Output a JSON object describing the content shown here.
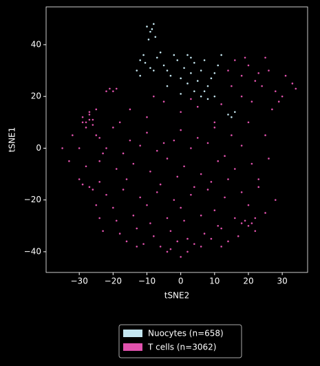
{
  "chart_data": {
    "type": "scatter",
    "x_label": "tSNE2",
    "y_label": "tSNE1",
    "xlim": [
      -39.8,
      37.5
    ],
    "ylim": [
      -48,
      54.6
    ],
    "xticks": [
      {
        "value": -30,
        "label": "−30"
      },
      {
        "value": -20,
        "label": "−20"
      },
      {
        "value": -10,
        "label": "−10"
      },
      0,
      10,
      20,
      30
    ],
    "yticks": [
      {
        "value": -40,
        "label": "−40"
      },
      {
        "value": -20,
        "label": "−20"
      },
      0,
      20,
      40
    ],
    "grid": false,
    "legend_loc": "below",
    "series": [
      {
        "name": "Nuocytes (n=658)",
        "color": "#c4e6f0",
        "x": [
          -10,
          -9,
          -8,
          -7.5,
          -9.5,
          -8.5,
          -11,
          -12,
          -10.5,
          -9,
          -7,
          -5,
          -4,
          -3,
          -1,
          0,
          1,
          2,
          3,
          4,
          5,
          6,
          7,
          8,
          9,
          10,
          11,
          -6,
          -2,
          2,
          4,
          6,
          8,
          -4,
          0,
          3,
          7,
          -8,
          -12,
          10,
          14,
          15,
          16,
          -13,
          12
        ],
        "values": [
          47,
          45,
          48,
          43,
          42,
          46,
          36,
          34,
          33,
          31,
          35,
          32,
          30,
          28,
          34,
          27,
          31,
          25,
          29,
          33,
          26,
          30,
          22,
          24,
          27,
          29,
          32,
          37,
          36,
          36,
          22,
          20,
          19,
          24,
          21,
          35,
          34,
          30,
          28,
          20,
          13,
          12,
          14,
          30,
          36
        ]
      },
      {
        "name": "T cells (n=3062)",
        "color": "#e052ad",
        "x": [
          -29,
          -28,
          -27,
          -26,
          -28,
          -27,
          -26,
          -29,
          -27,
          -25,
          -21,
          -20,
          -19,
          -22,
          -32,
          -30,
          -24,
          -23,
          -33,
          -35,
          14,
          16,
          18,
          20,
          22,
          24,
          26,
          28,
          30,
          33,
          18,
          21,
          25,
          27,
          31,
          15,
          19,
          23,
          29,
          34,
          -15,
          -10,
          -5,
          0,
          5,
          10,
          -18,
          -8,
          3,
          12,
          -25,
          -20,
          -15,
          -10,
          -5,
          0,
          5,
          10,
          15,
          20,
          -22,
          -17,
          -12,
          -7,
          -2,
          3,
          8,
          13,
          18,
          25,
          -28,
          -24,
          -19,
          -14,
          -9,
          -4,
          1,
          6,
          11,
          16,
          21,
          26,
          -30,
          -16,
          -1,
          9,
          23,
          -6,
          4,
          14,
          -27,
          -22,
          -17,
          -12,
          -7,
          -2,
          3,
          8,
          13,
          18,
          23,
          28,
          -29,
          -25,
          -20,
          -10,
          0,
          10,
          20,
          25,
          -24,
          -19,
          -14,
          -9,
          -4,
          1,
          6,
          11,
          16,
          21,
          -23,
          -18,
          -13,
          -8,
          -3,
          2,
          7,
          12,
          17,
          22,
          -16,
          -11,
          -6,
          -1,
          4,
          9,
          14,
          18,
          -4,
          0,
          19,
          20,
          22,
          -26,
          -24,
          2,
          6,
          -13,
          -3,
          12
        ],
        "values": [
          12,
          10,
          14,
          11,
          8,
          13,
          9,
          10,
          11,
          15,
          23,
          22,
          23,
          22,
          5,
          0,
          4,
          -2,
          -5,
          0,
          30,
          34,
          28,
          32,
          26,
          24,
          30,
          22,
          20,
          25,
          20,
          18,
          35,
          15,
          28,
          24,
          35,
          29,
          18,
          23,
          15,
          12,
          18,
          14,
          16,
          10,
          10,
          20,
          19,
          17,
          5,
          8,
          3,
          6,
          2,
          7,
          4,
          8,
          5,
          10,
          0,
          -2,
          1,
          -1,
          3,
          0,
          2,
          -3,
          1,
          5,
          -7,
          -5,
          -8,
          -6,
          -9,
          -4,
          -7,
          -10,
          -5,
          -8,
          -6,
          -4,
          -12,
          -12,
          -11,
          -13,
          -12,
          -14,
          -15,
          -12,
          -15,
          -18,
          -16,
          -19,
          -17,
          -20,
          -18,
          -16,
          -19,
          -17,
          -15,
          -20,
          -14,
          -22,
          -23,
          -22,
          -23,
          -24,
          -22,
          -25,
          -27,
          -28,
          -26,
          -29,
          -27,
          -28,
          -26,
          -30,
          -27,
          -29,
          -32,
          -33,
          -31,
          -34,
          -32,
          -35,
          -33,
          -31,
          -34,
          -32,
          -36,
          -37,
          -38,
          -36,
          -37,
          -35,
          -36,
          -29,
          -40,
          -42,
          -28,
          -30,
          -27,
          -16,
          -13,
          -40,
          -38,
          -38,
          -39,
          -38
        ]
      }
    ]
  }
}
